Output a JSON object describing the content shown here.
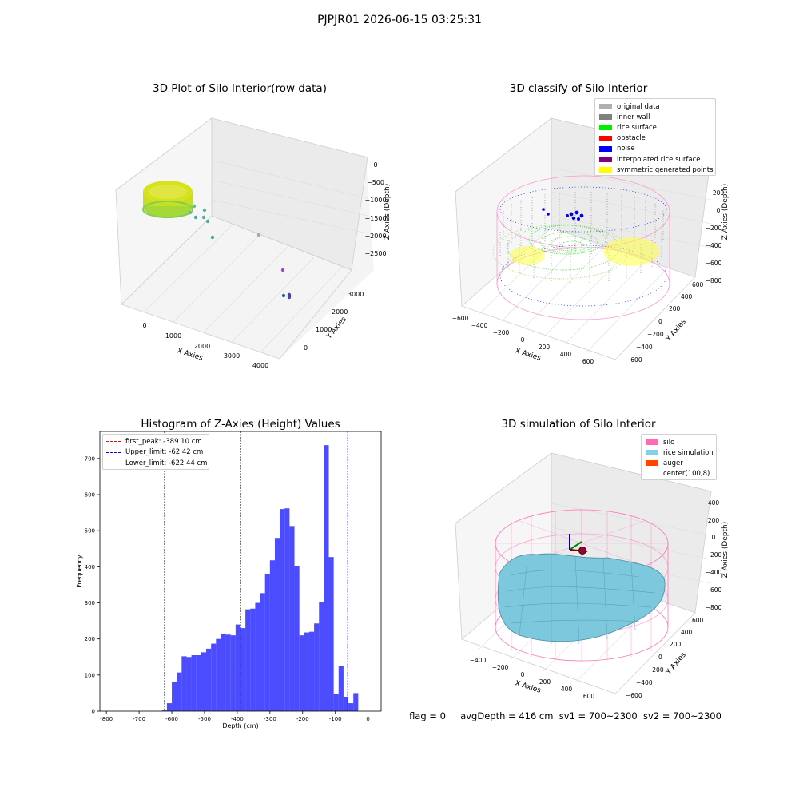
{
  "suptitle": "PJPJR01 2026-06-15 03:25:31",
  "panels": {
    "raw": {
      "title": "3D Plot of Silo Interior(row data)",
      "xlabel": "X Axies",
      "ylabel": "Y Axies",
      "zlabel": "Z Axies (Depth)",
      "xticks": [
        "0",
        "1000",
        "2000",
        "3000",
        "4000"
      ],
      "yticks": [
        "0",
        "1000",
        "2000",
        "3000"
      ],
      "zticks": [
        "0",
        "−500",
        "−1000",
        "−1500",
        "−2000",
        "−2500"
      ]
    },
    "classify": {
      "title": "3D classify of Silo Interior",
      "xlabel": "X Axies",
      "ylabel": "Y Axies",
      "zlabel": "Z Axies (Depth)",
      "xticks": [
        "−600",
        "−400",
        "−200",
        "0",
        "200",
        "400",
        "600"
      ],
      "yticks": [
        "−600",
        "−400",
        "−200",
        "0",
        "200",
        "400",
        "600"
      ],
      "zticks": [
        "200",
        "0",
        "−200",
        "−400",
        "−600",
        "−800"
      ],
      "legend": [
        {
          "label": "original data",
          "color": "#b0b0b0"
        },
        {
          "label": "inner wall",
          "color": "#808080"
        },
        {
          "label": "rice surface",
          "color": "#00ee00"
        },
        {
          "label": "obstacle",
          "color": "#ff0000"
        },
        {
          "label": "noise",
          "color": "#0000ff"
        },
        {
          "label": "interpolated rice surface",
          "color": "#800080"
        },
        {
          "label": "symmetric generated points",
          "color": "#ffff00"
        }
      ]
    },
    "simulation": {
      "title": "3D simulation of Silo Interior",
      "xlabel": "X Axies",
      "ylabel": "Y Axies",
      "zlabel": "Z Axies (Depth)",
      "xticks": [
        "−400",
        "−200",
        "0",
        "200",
        "400",
        "600"
      ],
      "yticks": [
        "−600",
        "−400",
        "−200",
        "0",
        "200",
        "400",
        "600"
      ],
      "zticks": [
        "400",
        "200",
        "0",
        "−200",
        "−400",
        "−600",
        "−800"
      ],
      "legend": [
        {
          "label": "silo",
          "color": "#ff69b4"
        },
        {
          "label": "rice simulation",
          "color": "#87ceeb"
        },
        {
          "label": "auger",
          "color": "#ff4500"
        },
        {
          "label": "center(100,8)",
          "color": ""
        }
      ]
    },
    "status": {
      "flag": "flag = 0",
      "avg": "avgDepth = 416 cm",
      "sv1": "sv1 = 700~2300",
      "sv2": "sv2 = 700~2300"
    }
  },
  "chart_data": [
    {
      "type": "bar",
      "title": "Histogram of Z-Axies (Height) Values",
      "xlabel": "Depth (cm)",
      "ylabel": "Frequency",
      "xlim": [
        -820,
        40
      ],
      "ylim": [
        0,
        775
      ],
      "xticks": [
        -800,
        -700,
        -600,
        -500,
        -400,
        -300,
        -200,
        -100,
        0
      ],
      "yticks": [
        0,
        100,
        200,
        300,
        400,
        500,
        600,
        700
      ],
      "bin_start": -630,
      "bin_width": 15,
      "bar_color": "#0000ff",
      "counts": [
        2,
        22,
        82,
        107,
        152,
        150,
        155,
        155,
        163,
        173,
        187,
        200,
        215,
        212,
        210,
        240,
        230,
        282,
        284,
        300,
        327,
        380,
        418,
        480,
        560,
        562,
        513,
        402,
        210,
        218,
        220,
        243,
        302,
        737,
        427,
        47,
        125,
        40,
        22,
        50
      ],
      "lines": [
        {
          "label": "first_peak: -389.10 cm",
          "x": -389.1,
          "color": "#ff0000"
        },
        {
          "label": "Upper_limit: -62.42 cm",
          "x": -62.42,
          "color": "#0000ff"
        },
        {
          "label": "Lower_limit: -622.44 cm",
          "x": -622.44,
          "color": "#0000ff"
        }
      ],
      "legend_position": "upper-left"
    }
  ]
}
